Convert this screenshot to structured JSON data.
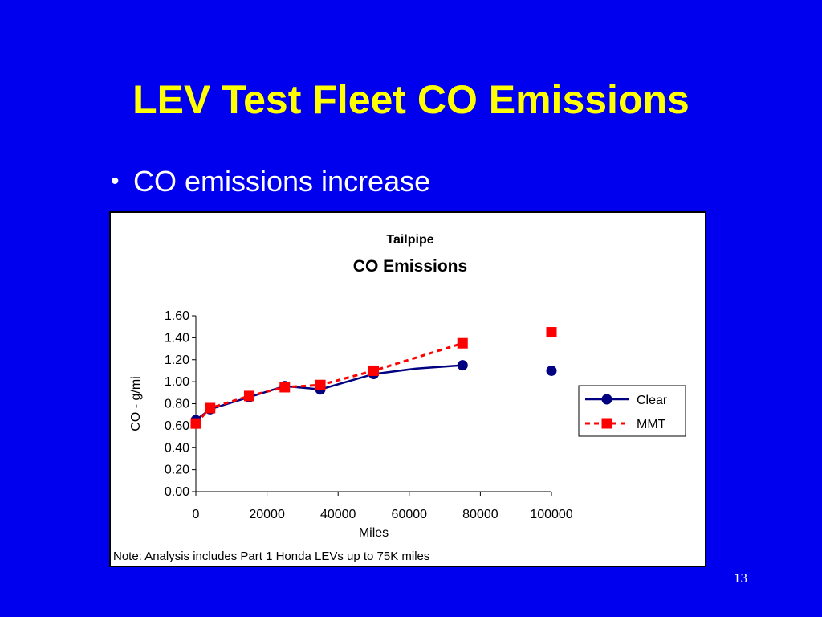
{
  "slide": {
    "title": "LEV Test Fleet CO Emissions",
    "bullets": [
      "CO emissions increase"
    ],
    "page_number": "13",
    "background_color": "#0000ee",
    "title_color": "#ffff00"
  },
  "chart_data": {
    "type": "line",
    "title": "Tailpipe",
    "subtitle": "CO Emissions",
    "xlabel": "Miles",
    "ylabel": "CO - g/mi",
    "xlim": [
      0,
      100000
    ],
    "ylim": [
      0,
      1.6
    ],
    "x_ticks": [
      "0",
      "20000",
      "40000",
      "60000",
      "80000",
      "100000"
    ],
    "y_ticks": [
      "0.00",
      "0.20",
      "0.40",
      "0.60",
      "0.80",
      "1.00",
      "1.20",
      "1.40",
      "1.60"
    ],
    "grid": false,
    "legend_position": "right",
    "note": "Note:  Analysis includes Part 1 Honda LEVs up to 75K miles",
    "series": [
      {
        "name": "Clear",
        "color": "#000080",
        "line_style": "solid",
        "marker": "circle",
        "points": [
          {
            "x": 0,
            "y": 0.65,
            "marker": true
          },
          {
            "x": 4000,
            "y": 0.75,
            "marker": true
          },
          {
            "x": 15000,
            "y": 0.86,
            "marker": true
          },
          {
            "x": 25000,
            "y": 0.96,
            "marker": true
          },
          {
            "x": 35000,
            "y": 0.93,
            "marker": true
          },
          {
            "x": 50000,
            "y": 1.07,
            "marker": true
          },
          {
            "x": 62000,
            "y": 1.12,
            "marker": false
          },
          {
            "x": 75000,
            "y": 1.15,
            "marker": true
          }
        ],
        "unconnected_points": [
          {
            "x": 100000,
            "y": 1.1
          }
        ]
      },
      {
        "name": "MMT",
        "color": "#ff0000",
        "line_style": "dashed",
        "marker": "square",
        "points": [
          {
            "x": 0,
            "y": 0.62,
            "marker": true
          },
          {
            "x": 4000,
            "y": 0.76,
            "marker": true
          },
          {
            "x": 15000,
            "y": 0.87,
            "marker": true
          },
          {
            "x": 25000,
            "y": 0.95,
            "marker": true
          },
          {
            "x": 35000,
            "y": 0.97,
            "marker": true
          },
          {
            "x": 50000,
            "y": 1.1,
            "marker": true
          },
          {
            "x": 75000,
            "y": 1.35,
            "marker": true
          }
        ],
        "unconnected_points": [
          {
            "x": 100000,
            "y": 1.45
          }
        ]
      }
    ]
  }
}
